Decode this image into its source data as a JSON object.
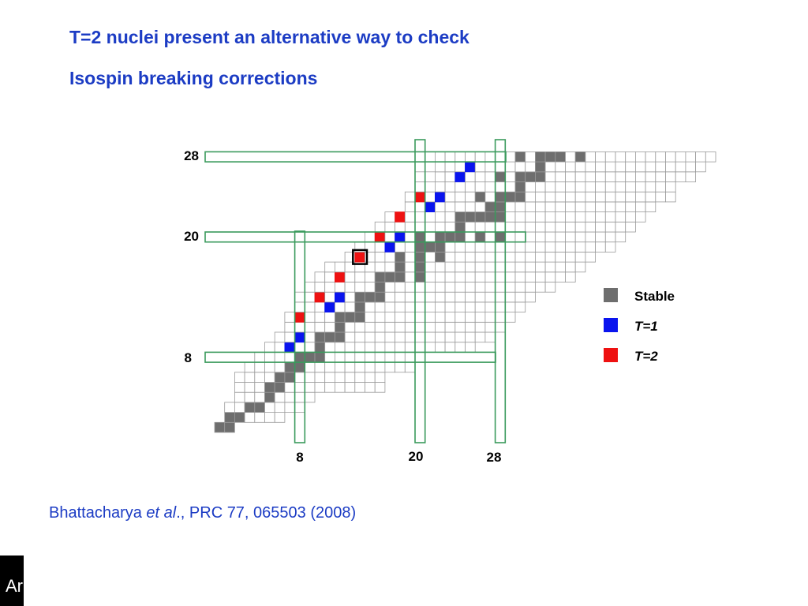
{
  "slide": {
    "title_line1": "T=2 nuclei present an alternative way to check",
    "title_line2": "Isospin breaking corrections",
    "citation_prefix": "Bhattacharya ",
    "citation_italic": "et al",
    "citation_suffix": "., PRC 77, 065503 (2008)",
    "corner_logo_text": "Ar"
  },
  "colors": {
    "title": "#1c3cc4",
    "stable": "#6e6e6e",
    "t1": "#0a14ee",
    "t2": "#ee1111",
    "magic_band": "#3a9a5c",
    "grid_line": "#9a9a9a"
  },
  "chart_data": {
    "type": "nuclide_chart",
    "magic_numbers_z": [
      "28",
      "20",
      "8"
    ],
    "magic_numbers_n": [
      "8",
      "20",
      "28"
    ],
    "legend": [
      {
        "label": "Stable",
        "color": "#6e6e6e",
        "italic": false
      },
      {
        "label": "T=1",
        "color": "#0a14ee",
        "italic": true
      },
      {
        "label": "T=2",
        "color": "#ee1111",
        "italic": true
      }
    ],
    "known_nuclide_rows": [
      {
        "z": 1,
        "n": [
          0,
          1
        ]
      },
      {
        "z": 2,
        "n": [
          1,
          2,
          3,
          4,
          5,
          6
        ]
      },
      {
        "z": 3,
        "n": [
          1,
          2,
          3,
          4,
          5,
          6,
          7,
          8
        ]
      },
      {
        "z": 4,
        "n": [
          2,
          3,
          4,
          5,
          6,
          7,
          8,
          9
        ]
      },
      {
        "z": 5,
        "n": [
          2,
          3,
          4,
          5,
          6,
          7,
          8,
          9,
          10,
          11,
          12,
          13,
          14,
          15,
          16
        ]
      },
      {
        "z": 6,
        "n": [
          2,
          3,
          4,
          5,
          6,
          7,
          8,
          9,
          10,
          11,
          12,
          13,
          14,
          15,
          16
        ]
      },
      {
        "z": 7,
        "n": [
          3,
          4,
          5,
          6,
          7,
          8,
          9,
          10,
          11,
          12,
          13,
          14,
          15,
          16,
          17,
          18,
          19
        ]
      },
      {
        "z": 8,
        "n": [
          4,
          5,
          6,
          7,
          8,
          9,
          10,
          11,
          12,
          13,
          14,
          15,
          16,
          17,
          18,
          19,
          20
        ]
      },
      {
        "z": 9,
        "n": [
          5,
          6,
          7,
          8,
          9,
          10,
          11,
          12,
          13,
          14,
          15,
          16,
          17,
          18,
          19,
          20,
          21,
          22,
          23,
          24,
          25
        ]
      },
      {
        "z": 10,
        "n": [
          6,
          7,
          8,
          9,
          10,
          11,
          12,
          13,
          14,
          15,
          16,
          17,
          18,
          19,
          20,
          21,
          22,
          23,
          24,
          25,
          26,
          27
        ]
      },
      {
        "z": 11,
        "n": [
          7,
          8,
          9,
          10,
          11,
          12,
          13,
          14,
          15,
          16,
          17,
          18,
          19,
          20,
          21,
          22,
          23,
          24,
          25,
          26,
          27,
          28
        ]
      },
      {
        "z": 12,
        "n": [
          7,
          8,
          9,
          10,
          11,
          12,
          13,
          14,
          15,
          16,
          17,
          18,
          19,
          20,
          21,
          22,
          23,
          24,
          25,
          26,
          27,
          28,
          29
        ]
      },
      {
        "z": 13,
        "n": [
          8,
          9,
          10,
          11,
          12,
          13,
          14,
          15,
          16,
          17,
          18,
          19,
          20,
          21,
          22,
          23,
          24,
          25,
          26,
          27,
          28,
          29,
          30
        ]
      },
      {
        "z": 14,
        "n": [
          8,
          9,
          10,
          11,
          12,
          13,
          14,
          15,
          16,
          17,
          18,
          19,
          20,
          21,
          22,
          23,
          24,
          25,
          26,
          27,
          28,
          29,
          30,
          31
        ]
      },
      {
        "z": 15,
        "n": [
          9,
          10,
          11,
          12,
          13,
          14,
          15,
          16,
          17,
          18,
          19,
          20,
          21,
          22,
          23,
          24,
          25,
          26,
          27,
          28,
          29,
          30,
          31,
          32,
          33
        ]
      },
      {
        "z": 16,
        "n": [
          10,
          11,
          12,
          13,
          14,
          15,
          16,
          17,
          18,
          19,
          20,
          21,
          22,
          23,
          24,
          25,
          26,
          27,
          28,
          29,
          30,
          31,
          32,
          33,
          34,
          35
        ]
      },
      {
        "z": 17,
        "n": [
          11,
          12,
          13,
          14,
          15,
          16,
          17,
          18,
          19,
          20,
          21,
          22,
          23,
          24,
          25,
          26,
          27,
          28,
          29,
          30,
          31,
          32,
          33,
          34,
          35,
          36
        ]
      },
      {
        "z": 18,
        "n": [
          13,
          14,
          15,
          16,
          17,
          18,
          19,
          20,
          21,
          22,
          23,
          24,
          25,
          26,
          27,
          28,
          29,
          30,
          31,
          32,
          33,
          34,
          35,
          36,
          37
        ]
      },
      {
        "z": 19,
        "n": [
          14,
          15,
          16,
          17,
          18,
          19,
          20,
          21,
          22,
          23,
          24,
          25,
          26,
          27,
          28,
          29,
          30,
          31,
          32,
          33,
          34,
          35,
          36,
          37,
          38,
          39
        ]
      },
      {
        "z": 20,
        "n": [
          15,
          16,
          17,
          18,
          19,
          20,
          21,
          22,
          23,
          24,
          25,
          26,
          27,
          28,
          29,
          30,
          31,
          32,
          33,
          34,
          35,
          36,
          37,
          38,
          39,
          40
        ]
      },
      {
        "z": 21,
        "n": [
          16,
          17,
          18,
          19,
          20,
          21,
          22,
          23,
          24,
          25,
          26,
          27,
          28,
          29,
          30,
          31,
          32,
          33,
          34,
          35,
          36,
          37,
          38,
          39,
          40,
          41
        ]
      },
      {
        "z": 22,
        "n": [
          17,
          18,
          19,
          20,
          21,
          22,
          23,
          24,
          25,
          26,
          27,
          28,
          29,
          30,
          30,
          31,
          32,
          33,
          34,
          35,
          36,
          37,
          38,
          39,
          40,
          41,
          42
        ]
      },
      {
        "z": 23,
        "n": [
          19,
          20,
          21,
          22,
          23,
          24,
          25,
          26,
          27,
          28,
          29,
          30,
          31,
          32,
          33,
          34,
          35,
          36,
          37,
          38,
          39,
          40,
          41,
          42,
          43
        ]
      },
      {
        "z": 24,
        "n": [
          19,
          20,
          21,
          22,
          23,
          24,
          25,
          26,
          27,
          28,
          29,
          30,
          31,
          32,
          33,
          34,
          35,
          36,
          37,
          38,
          39,
          40,
          41,
          42,
          43,
          44,
          45
        ]
      },
      {
        "z": 25,
        "n": [
          20,
          21,
          22,
          23,
          24,
          25,
          26,
          27,
          28,
          29,
          30,
          31,
          32,
          33,
          34,
          35,
          36,
          37,
          38,
          39,
          40,
          41,
          42,
          43,
          44,
          45
        ]
      },
      {
        "z": 26,
        "n": [
          20,
          21,
          22,
          23,
          24,
          25,
          26,
          27,
          28,
          29,
          30,
          31,
          32,
          33,
          34,
          35,
          36,
          37,
          38,
          39,
          40,
          41,
          42,
          43,
          44,
          45,
          46,
          47
        ]
      },
      {
        "z": 27,
        "n": [
          22,
          23,
          24,
          25,
          26,
          27,
          28,
          29,
          30,
          31,
          32,
          33,
          34,
          35,
          36,
          37,
          38,
          39,
          40,
          41,
          42,
          43,
          44,
          45,
          46,
          47,
          48
        ]
      },
      {
        "z": 28,
        "n": [
          22,
          23,
          24,
          25,
          26,
          27,
          28,
          29,
          30,
          31,
          32,
          33,
          34,
          35,
          36,
          37,
          38,
          39,
          40,
          41,
          42,
          43,
          44,
          45,
          46,
          47,
          48,
          49
        ]
      }
    ],
    "stable_nuclides": [
      [
        1,
        0
      ],
      [
        1,
        1
      ],
      [
        2,
        1
      ],
      [
        2,
        2
      ],
      [
        3,
        3
      ],
      [
        3,
        4
      ],
      [
        4,
        5
      ],
      [
        5,
        5
      ],
      [
        5,
        6
      ],
      [
        6,
        6
      ],
      [
        6,
        7
      ],
      [
        7,
        7
      ],
      [
        7,
        8
      ],
      [
        8,
        8
      ],
      [
        8,
        9
      ],
      [
        8,
        10
      ],
      [
        9,
        10
      ],
      [
        10,
        10
      ],
      [
        10,
        11
      ],
      [
        10,
        12
      ],
      [
        11,
        12
      ],
      [
        12,
        12
      ],
      [
        12,
        13
      ],
      [
        12,
        14
      ],
      [
        13,
        14
      ],
      [
        14,
        14
      ],
      [
        14,
        15
      ],
      [
        14,
        16
      ],
      [
        15,
        16
      ],
      [
        16,
        16
      ],
      [
        16,
        17
      ],
      [
        16,
        18
      ],
      [
        16,
        20
      ],
      [
        17,
        18
      ],
      [
        17,
        20
      ],
      [
        18,
        18
      ],
      [
        18,
        20
      ],
      [
        18,
        22
      ],
      [
        19,
        20
      ],
      [
        19,
        21
      ],
      [
        19,
        22
      ],
      [
        20,
        20
      ],
      [
        20,
        22
      ],
      [
        20,
        23
      ],
      [
        20,
        24
      ],
      [
        20,
        26
      ],
      [
        20,
        28
      ],
      [
        21,
        24
      ],
      [
        22,
        24
      ],
      [
        22,
        25
      ],
      [
        22,
        26
      ],
      [
        22,
        27
      ],
      [
        22,
        28
      ],
      [
        23,
        27
      ],
      [
        23,
        28
      ],
      [
        24,
        26
      ],
      [
        24,
        28
      ],
      [
        24,
        29
      ],
      [
        24,
        30
      ],
      [
        25,
        30
      ],
      [
        26,
        28
      ],
      [
        26,
        30
      ],
      [
        26,
        31
      ],
      [
        26,
        32
      ],
      [
        27,
        32
      ],
      [
        28,
        30
      ],
      [
        28,
        32
      ],
      [
        28,
        33
      ],
      [
        28,
        34
      ],
      [
        28,
        36
      ]
    ],
    "t1_nuclides": [
      [
        9,
        7
      ],
      [
        10,
        8
      ],
      [
        13,
        11
      ],
      [
        14,
        12
      ],
      [
        19,
        17
      ],
      [
        20,
        18
      ],
      [
        23,
        21
      ],
      [
        24,
        22
      ],
      [
        26,
        24
      ],
      [
        27,
        25
      ]
    ],
    "t2_nuclides": [
      [
        12,
        8
      ],
      [
        14,
        10
      ],
      [
        16,
        12
      ],
      [
        18,
        14
      ],
      [
        20,
        16
      ],
      [
        22,
        18
      ],
      [
        24,
        20
      ]
    ],
    "highlighted_nuclide": [
      18,
      14
    ]
  }
}
